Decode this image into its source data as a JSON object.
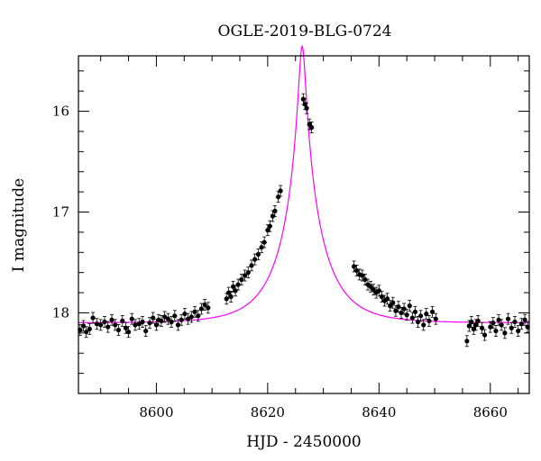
{
  "chart_data": {
    "type": "scatter",
    "title": "OGLE-2019-BLG-0724",
    "xlabel": "HJD - 2450000",
    "ylabel": "I magnitude",
    "xlim": [
      8586,
      8667
    ],
    "ylim": [
      18.8,
      15.45
    ],
    "y_inverted": true,
    "grid": false,
    "x_ticks": {
      "major": [
        8600,
        8620,
        8640,
        8660
      ],
      "minor_step": 5
    },
    "y_ticks": {
      "major": [
        16,
        17,
        18
      ],
      "minor_step": 0.2
    },
    "x_tick_labels": [
      "8600",
      "8620",
      "8640",
      "8660"
    ],
    "y_tick_labels": [
      "16",
      "17",
      "18"
    ],
    "model": {
      "color": "#ff00ff",
      "baseline": 18.1,
      "t0": 626.2,
      "tE": 7.5,
      "u0": 0.08
    },
    "series": [
      {
        "marker_color": "#000000",
        "points": [
          [
            8586.3,
            18.17
          ],
          [
            8586.9,
            18.13
          ],
          [
            8587.4,
            18.19
          ],
          [
            8588.0,
            18.16
          ],
          [
            8588.6,
            18.05
          ],
          [
            8589.3,
            18.11
          ],
          [
            8590.0,
            18.12
          ],
          [
            8590.7,
            18.09
          ],
          [
            8591.3,
            18.14
          ],
          [
            8592.0,
            18.07
          ],
          [
            8592.6,
            18.12
          ],
          [
            8593.2,
            18.17
          ],
          [
            8593.9,
            18.08
          ],
          [
            8594.5,
            18.15
          ],
          [
            8595.0,
            18.19
          ],
          [
            8595.6,
            18.06
          ],
          [
            8596.2,
            18.12
          ],
          [
            8596.9,
            18.11
          ],
          [
            8597.5,
            18.09
          ],
          [
            8598.1,
            18.18
          ],
          [
            8598.8,
            18.1
          ],
          [
            8599.4,
            18.05
          ],
          [
            8600.0,
            18.12
          ],
          [
            8600.4,
            18.07
          ],
          [
            8600.9,
            18.08
          ],
          [
            8601.5,
            18.04
          ],
          [
            8602.1,
            18.06
          ],
          [
            8602.7,
            18.09
          ],
          [
            8603.3,
            18.03
          ],
          [
            8603.9,
            18.12
          ],
          [
            8604.5,
            18.07
          ],
          [
            8605.1,
            18.01
          ],
          [
            8605.7,
            18.06
          ],
          [
            8606.3,
            18.04
          ],
          [
            8606.9,
            17.99
          ],
          [
            8607.5,
            18.03
          ],
          [
            8608.1,
            17.96
          ],
          [
            8608.7,
            17.92
          ],
          [
            8609.3,
            17.95
          ],
          [
            8612.6,
            17.86
          ],
          [
            8613.0,
            17.8
          ],
          [
            8613.4,
            17.84
          ],
          [
            8613.8,
            17.74
          ],
          [
            8614.2,
            17.78
          ],
          [
            8614.7,
            17.72
          ],
          [
            8615.3,
            17.67
          ],
          [
            8615.9,
            17.63
          ],
          [
            8616.5,
            17.6
          ],
          [
            8617.1,
            17.53
          ],
          [
            8617.7,
            17.47
          ],
          [
            8618.3,
            17.42
          ],
          [
            8618.9,
            17.35
          ],
          [
            8619.4,
            17.3
          ],
          [
            8620.0,
            17.18
          ],
          [
            8620.4,
            17.14
          ],
          [
            8620.9,
            17.04
          ],
          [
            8621.3,
            16.99
          ],
          [
            8621.9,
            16.85
          ],
          [
            8622.3,
            16.79
          ],
          [
            8626.4,
            15.88
          ],
          [
            8626.7,
            15.93
          ],
          [
            8627.0,
            15.97
          ],
          [
            8627.5,
            16.13
          ],
          [
            8627.9,
            16.16
          ],
          [
            8635.5,
            17.54
          ],
          [
            8636.0,
            17.58
          ],
          [
            8636.5,
            17.62
          ],
          [
            8637.0,
            17.63
          ],
          [
            8637.5,
            17.67
          ],
          [
            8638.0,
            17.72
          ],
          [
            8638.5,
            17.74
          ],
          [
            8639.0,
            17.77
          ],
          [
            8639.5,
            17.8
          ],
          [
            8640.0,
            17.78
          ],
          [
            8640.5,
            17.84
          ],
          [
            8641.0,
            17.88
          ],
          [
            8641.5,
            17.86
          ],
          [
            8642.0,
            17.93
          ],
          [
            8642.5,
            17.9
          ],
          [
            8643.0,
            17.98
          ],
          [
            8643.5,
            17.94
          ],
          [
            8644.0,
            18.0
          ],
          [
            8644.5,
            17.96
          ],
          [
            8645.0,
            18.02
          ],
          [
            8645.5,
            17.93
          ],
          [
            8646.0,
            18.05
          ],
          [
            8646.5,
            17.99
          ],
          [
            8647.0,
            18.09
          ],
          [
            8647.5,
            18.03
          ],
          [
            8648.0,
            18.12
          ],
          [
            8648.5,
            18.01
          ],
          [
            8649.0,
            18.08
          ],
          [
            8649.6,
            17.99
          ],
          [
            8650.2,
            18.06
          ],
          [
            8655.8,
            18.28
          ],
          [
            8656.2,
            18.13
          ],
          [
            8656.6,
            18.09
          ],
          [
            8657.0,
            18.16
          ],
          [
            8657.4,
            18.12
          ],
          [
            8657.8,
            18.08
          ],
          [
            8658.5,
            18.15
          ],
          [
            8659.0,
            18.22
          ],
          [
            8660.0,
            18.14
          ],
          [
            8660.5,
            18.1
          ],
          [
            8661.0,
            18.18
          ],
          [
            8661.5,
            18.07
          ],
          [
            8662.0,
            18.12
          ],
          [
            8662.6,
            18.2
          ],
          [
            8663.2,
            18.06
          ],
          [
            8663.8,
            18.15
          ],
          [
            8664.4,
            18.09
          ],
          [
            8665.0,
            18.18
          ],
          [
            8665.6,
            18.11
          ],
          [
            8666.2,
            18.07
          ],
          [
            8666.7,
            18.14
          ]
        ]
      }
    ]
  }
}
